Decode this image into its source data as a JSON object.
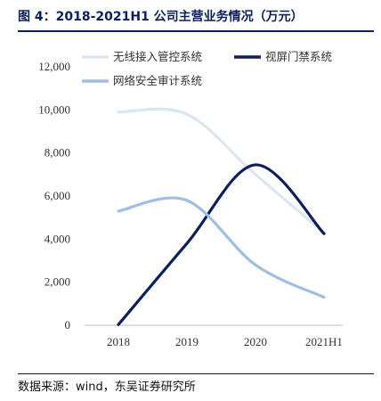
{
  "figure": {
    "title": "图 4：2018-2021H1 公司主营业务情况（万元）",
    "source": "数据来源：wind，东吴证券研究所"
  },
  "colors": {
    "title": "#0a1f5c",
    "axis": "#bfbfbf"
  },
  "chart_data": {
    "type": "line",
    "title": "",
    "xlabel": "",
    "ylabel": "",
    "categories": [
      "2018",
      "2019",
      "2020",
      "2021H1"
    ],
    "ylim": [
      0,
      12000
    ],
    "yticks": [
      0,
      2000,
      4000,
      6000,
      8000,
      10000,
      12000
    ],
    "ytick_labels": [
      "0",
      "2,000",
      "4,000",
      "6,000",
      "8,000",
      "10,000",
      "12,000"
    ],
    "grid": false,
    "smooth": true,
    "legend_position": "top",
    "series": [
      {
        "name": "无线接入管控系统",
        "color": "#dbe6f3",
        "values": [
          9900,
          9800,
          7000,
          4300
        ]
      },
      {
        "name": "视屏门禁系统",
        "color": "#0b1f5c",
        "values": [
          30,
          3800,
          7450,
          4250
        ]
      },
      {
        "name": "网络安全审计系统",
        "color": "#9dbfe3",
        "values": [
          5300,
          5800,
          2800,
          1300
        ]
      }
    ]
  }
}
